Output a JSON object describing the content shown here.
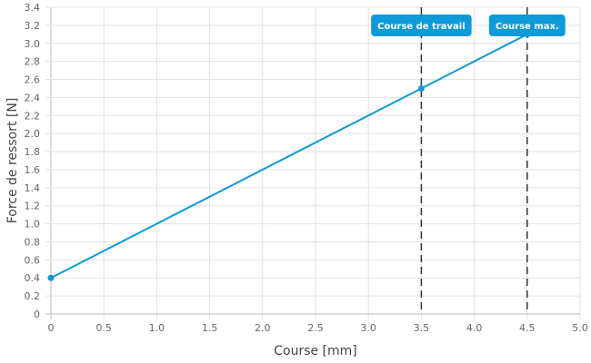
{
  "chart_data": {
    "type": "line",
    "title": "",
    "xlabel": "Course [mm]",
    "ylabel": "Force de ressort [N]",
    "xlim": [
      0,
      5.0
    ],
    "ylim": [
      0,
      3.4
    ],
    "x_ticks": [
      "0",
      "0.5",
      "1.0",
      "1.5",
      "2.0",
      "2.5",
      "3.0",
      "3.5",
      "4.0",
      "4.5",
      "5.0"
    ],
    "y_ticks": [
      "0",
      "0.2",
      "0.4",
      "0.6",
      "0.8",
      "1.0",
      "1.2",
      "1.4",
      "1.6",
      "1.8",
      "2.0",
      "2.2",
      "2.4",
      "2.6",
      "2.8",
      "3.0",
      "3.2",
      "3.4"
    ],
    "grid": true,
    "series": [
      {
        "name": "Force de ressort",
        "color": "#0d9ad8",
        "x": [
          0,
          3.5,
          4.5
        ],
        "y": [
          0.4,
          2.5,
          3.1
        ]
      }
    ],
    "annotations": [
      {
        "x": 3.5,
        "label": "Course de travail",
        "color": "#0d9ad8"
      },
      {
        "x": 4.5,
        "label": "Course max.",
        "color": "#0d9ad8"
      }
    ]
  }
}
